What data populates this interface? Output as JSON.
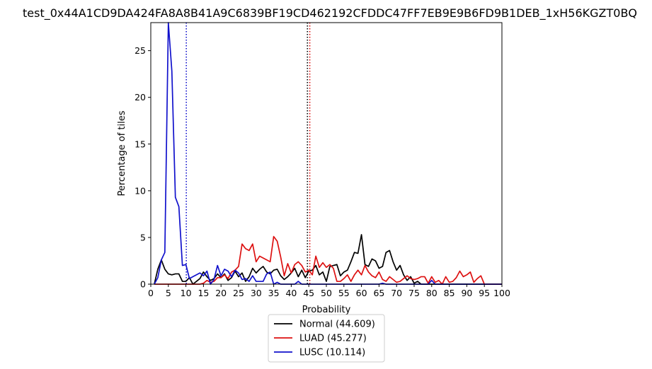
{
  "chart_data": {
    "type": "line",
    "title": "test_0x44A1CD9DA424FA8A8B41A9C6839BF19CD462192CFDDC47FF7EB9E9B6FD9B1DEB_1xH56KGZT0BQ",
    "xlabel": "Probability",
    "ylabel": "Percentage of tiles",
    "xlim": [
      0,
      100
    ],
    "ylim": [
      0,
      28
    ],
    "xticks": [
      0,
      5,
      10,
      15,
      20,
      25,
      30,
      35,
      40,
      45,
      50,
      55,
      60,
      65,
      70,
      75,
      80,
      85,
      90,
      95,
      100
    ],
    "yticks": [
      0,
      5,
      10,
      15,
      20,
      25
    ],
    "grid": false,
    "legend_position": "below",
    "x": [
      1,
      2,
      3,
      4,
      5,
      6,
      7,
      8,
      9,
      10,
      11,
      12,
      13,
      14,
      15,
      16,
      17,
      18,
      19,
      20,
      21,
      22,
      23,
      24,
      25,
      26,
      27,
      28,
      29,
      30,
      31,
      32,
      33,
      34,
      35,
      36,
      37,
      38,
      39,
      40,
      41,
      42,
      43,
      44,
      45,
      46,
      47,
      48,
      49,
      50,
      51,
      52,
      53,
      54,
      55,
      56,
      57,
      58,
      59,
      60,
      61,
      62,
      63,
      64,
      65,
      66,
      67,
      68,
      69,
      70,
      71,
      72,
      73,
      74,
      75,
      76,
      77,
      78,
      79,
      80,
      81,
      82,
      83,
      84,
      85,
      86,
      87,
      88,
      89,
      90,
      91,
      92,
      93,
      94,
      95,
      96,
      97,
      98,
      99,
      100
    ],
    "series": [
      {
        "name": "Normal (44.609)",
        "color": "#000000",
        "values": [
          0,
          1.6,
          2.6,
          1.6,
          1.1,
          1.0,
          1.1,
          1.1,
          0.3,
          0.3,
          0.7,
          0.0,
          0.3,
          0.6,
          1.3,
          0.8,
          0.4,
          0.6,
          1.1,
          0.7,
          1.1,
          0.4,
          0.7,
          1.4,
          0.8,
          1.2,
          0.3,
          0.8,
          1.7,
          1.2,
          1.6,
          1.9,
          1.3,
          1.1,
          1.5,
          1.6,
          0.9,
          0.5,
          0.8,
          1.2,
          1.7,
          0.8,
          1.5,
          0.7,
          1.4,
          1.5,
          2.0,
          1.0,
          1.3,
          0.3,
          1.9,
          2.0,
          2.1,
          0.9,
          1.3,
          1.5,
          2.4,
          3.4,
          3.3,
          5.3,
          2.1,
          1.9,
          2.7,
          2.5,
          1.7,
          1.9,
          3.4,
          3.6,
          2.4,
          1.5,
          2.0,
          1.0,
          0.4,
          0.8,
          0.1,
          0.3,
          0.0,
          0.0,
          0.0,
          0.0,
          0.0,
          0.0,
          0.0,
          0.0,
          0.0,
          0.0,
          0.0,
          0.0,
          0.0,
          0.0,
          0.0,
          0.0,
          0.0,
          0.0,
          0.0,
          0.0,
          0.0,
          0.0,
          0.0,
          0.0
        ]
      },
      {
        "name": "LUAD (45.277)",
        "color": "#dd1111",
        "values": [
          0,
          0,
          0,
          0,
          0,
          0,
          0,
          0,
          0,
          0,
          0,
          0,
          0,
          0,
          0.1,
          0.4,
          0.2,
          0.3,
          0.7,
          0.7,
          1.0,
          0.6,
          1.3,
          1.5,
          1.9,
          4.3,
          3.8,
          3.6,
          4.3,
          2.4,
          3.0,
          2.8,
          2.6,
          2.4,
          5.1,
          4.6,
          2.9,
          0.9,
          2.2,
          1.2,
          2.1,
          2.4,
          2.0,
          1.3,
          1.5,
          1.0,
          3.0,
          1.8,
          2.3,
          1.8,
          2.1,
          1.7,
          0.3,
          0.3,
          0.6,
          1.0,
          0.3,
          1.0,
          1.5,
          1.0,
          2.0,
          1.3,
          0.9,
          0.7,
          1.3,
          0.5,
          0.3,
          0.8,
          0.5,
          0.2,
          0.3,
          0.6,
          0.9,
          0.6,
          0.5,
          0.6,
          0.8,
          0.8,
          0.1,
          0.8,
          0.2,
          0.4,
          0.0,
          0.8,
          0.2,
          0.3,
          0.7,
          1.4,
          0.8,
          1.0,
          1.3,
          0.2,
          0.6,
          0.9,
          0.0,
          0.0,
          0.0,
          0.0,
          0.0,
          0.0
        ]
      },
      {
        "name": "LUSC (10.114)",
        "color": "#1111cc",
        "values": [
          0,
          0.7,
          2.6,
          3.4,
          28.0,
          22.8,
          9.3,
          8.3,
          2.0,
          2.1,
          0.6,
          0.8,
          1.0,
          1.2,
          0.9,
          1.4,
          0.0,
          0.5,
          2.0,
          0.9,
          1.6,
          1.4,
          0.8,
          1.5,
          1.2,
          0.5,
          0.6,
          0.3,
          0.9,
          0.3,
          0.3,
          0.3,
          1.1,
          1.3,
          0.0,
          0.2,
          0.0,
          0.0,
          0.0,
          0.0,
          0.0,
          0.3,
          0.0,
          0.0,
          0.0,
          0.0,
          0.0,
          0.0,
          0.0,
          0.0,
          0.0,
          0.0,
          0.0,
          0.0,
          0.0,
          0.0,
          0.0,
          0.0,
          0.0,
          0.0,
          0.0,
          0.0,
          0.0,
          0.0,
          0.0,
          0.1,
          0.0,
          0.0,
          0.0,
          0.0,
          0.0,
          0.0,
          0.0,
          0.0,
          0.0,
          0.0,
          0.0,
          0.0,
          0.0,
          0.4,
          0.0,
          0.0,
          0.0,
          0.0,
          0.0,
          0.0,
          0.0,
          0.0,
          0.0,
          0.0,
          0.0,
          0.0,
          0.0,
          0.0,
          0.0,
          0.0,
          0.0,
          0.0,
          0.0,
          0.0
        ]
      }
    ],
    "vlines": [
      {
        "x": 44.609,
        "color": "#000000",
        "style": "dotted"
      },
      {
        "x": 45.277,
        "color": "#dd1111",
        "style": "dotted"
      },
      {
        "x": 10.114,
        "color": "#1111cc",
        "style": "dotted"
      }
    ]
  }
}
